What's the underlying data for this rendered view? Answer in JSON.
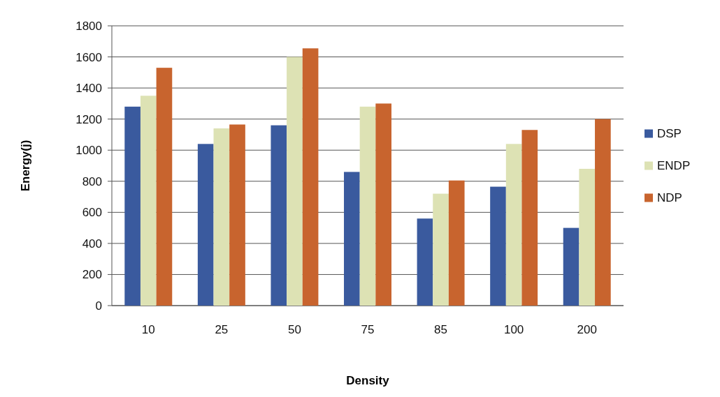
{
  "chart_data": {
    "type": "bar",
    "xlabel": "Density",
    "ylabel": "Energy(j)",
    "categories": [
      "10",
      "25",
      "50",
      "75",
      "85",
      "100",
      "200"
    ],
    "series": [
      {
        "name": "DSP",
        "color": "#3a5a9e",
        "values": [
          1280,
          1040,
          1160,
          860,
          560,
          765,
          500
        ]
      },
      {
        "name": "ENDP",
        "color": "#dde2b4",
        "values": [
          1350,
          1140,
          1600,
          1280,
          720,
          1040,
          880
        ]
      },
      {
        "name": "NDP",
        "color": "#c8642e",
        "values": [
          1530,
          1165,
          1655,
          1300,
          805,
          1130,
          1200
        ]
      }
    ],
    "ylim": [
      0,
      1800
    ],
    "yticks": [
      0,
      200,
      400,
      600,
      800,
      1000,
      1200,
      1400,
      1600,
      1800
    ],
    "grid": "y",
    "legend": "right"
  }
}
